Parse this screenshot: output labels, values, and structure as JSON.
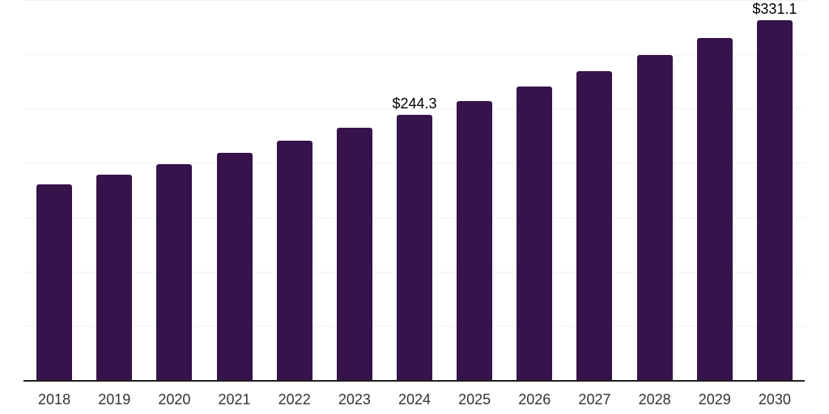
{
  "chart_data": {
    "type": "bar",
    "categories": [
      "2018",
      "2019",
      "2020",
      "2021",
      "2022",
      "2023",
      "2024",
      "2025",
      "2026",
      "2027",
      "2028",
      "2029",
      "2030"
    ],
    "values": [
      180.0,
      189.4,
      199.2,
      209.6,
      220.5,
      232.0,
      244.3,
      257.0,
      270.4,
      284.5,
      299.3,
      314.9,
      331.1
    ],
    "value_labels": [
      "",
      "",
      "",
      "",
      "",
      "",
      "$244.3",
      "",
      "",
      "",
      "",
      "",
      "$331.1"
    ],
    "xlabel": "",
    "ylabel": "",
    "ylim": [
      0,
      350
    ],
    "gridline_step": 50,
    "grid": "horizontal",
    "legend_position": "none",
    "value_prefix": "$"
  },
  "colors": {
    "bar": "#36134a",
    "gridline": "#f2f2f2",
    "axis_line": "#1f1f1f",
    "x_label": "#333333",
    "value_label": "#000000",
    "background": "#ffffff"
  }
}
